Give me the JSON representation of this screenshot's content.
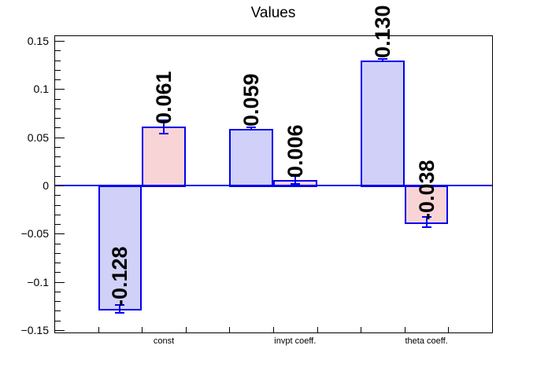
{
  "chart_data": {
    "type": "bar",
    "title": "Values",
    "categories": [
      "const",
      "invpt coeff.",
      "theta coeff."
    ],
    "series": [
      {
        "name": "blue-bars",
        "values": [
          -0.128,
          0.059,
          0.13
        ]
      },
      {
        "name": "pink-bars",
        "values": [
          0.061,
          0.006,
          -0.038
        ]
      }
    ],
    "bars": [
      {
        "bin": 1,
        "value": -0.128,
        "label": "-0.128",
        "error": 0.004,
        "fill": "lavender",
        "category": ""
      },
      {
        "bin": 2,
        "value": 0.061,
        "label": "0.061",
        "error": 0.007,
        "fill": "pink",
        "category": "const"
      },
      {
        "bin": 4,
        "value": 0.059,
        "label": "0.059",
        "error": 0.001,
        "fill": "lavender",
        "category": ""
      },
      {
        "bin": 5,
        "value": 0.006,
        "label": "0.006",
        "error": 0.004,
        "fill": "pink",
        "category": "invpt coeff."
      },
      {
        "bin": 7,
        "value": 0.13,
        "label": "0.130",
        "error": 0.001,
        "fill": "lavender",
        "category": ""
      },
      {
        "bin": 8,
        "value": -0.038,
        "label": "-0.038",
        "error": 0.005,
        "fill": "pink",
        "category": "theta coeff."
      }
    ],
    "n_bins": 10,
    "y_axis": {
      "min": -0.1525,
      "max": 0.1557,
      "major_tick_step": 0.05,
      "minor_tick_step": 0.01,
      "major_tick_values": [
        0.15,
        0.1,
        0.05,
        0,
        -0.05,
        -0.1,
        -0.15
      ],
      "major_tick_labels": [
        "0.15",
        "0.1",
        "0.05",
        "0",
        "−0.05",
        "−0.1",
        "−0.15"
      ]
    },
    "xlabel": "",
    "ylabel": "",
    "grid": false,
    "legend": false,
    "colors": {
      "lavender_fill": "#d0d0f8",
      "pink_fill": "#f9d4d7",
      "bar_border": "#0000f0",
      "zero_line": "#0000f0",
      "axis": "#000000",
      "background": "#ffffff"
    }
  }
}
